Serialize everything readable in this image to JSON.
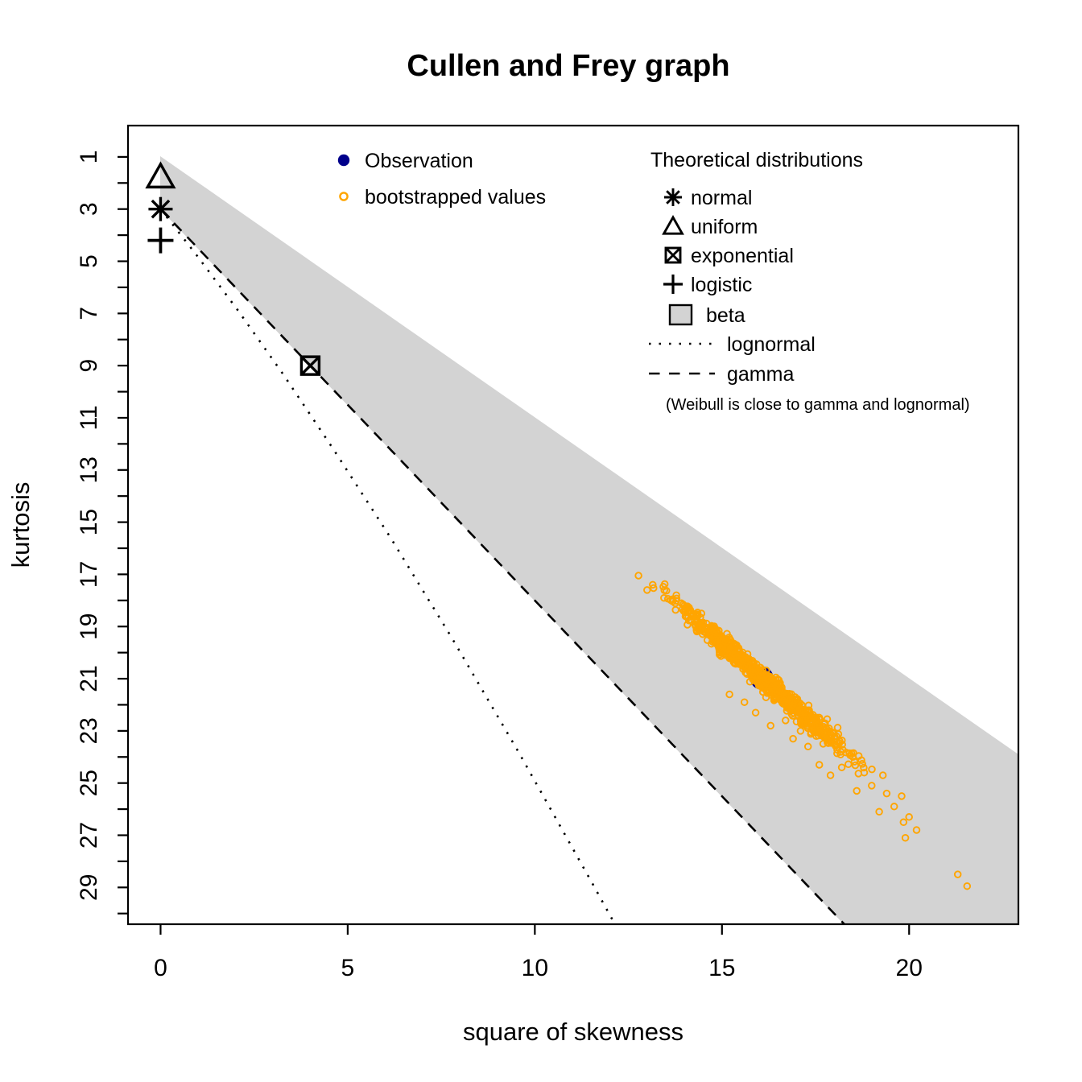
{
  "title": "Cullen and Frey graph",
  "legend": {
    "observation": "Observation",
    "bootstrapped": "bootstrapped values",
    "theoretical_title": "Theoretical distributions",
    "items": {
      "normal": "normal",
      "uniform": "uniform",
      "exponential": "exponential",
      "logistic": "logistic",
      "beta": "beta",
      "lognormal": "lognormal",
      "gamma": "gamma"
    },
    "weibull_note": "(Weibull is close to gamma and lognormal)"
  },
  "colors": {
    "observation": "#00008B",
    "bootstrap": "#FFA500",
    "beta_region": "#D3D3D3",
    "axis": "#000000"
  },
  "chart_data": {
    "type": "scatter",
    "title": "Cullen and Frey graph",
    "xlabel": "square of skewness",
    "ylabel": "kurtosis",
    "x_axis": {
      "ticks": [
        0,
        5,
        10,
        15,
        20
      ],
      "range": [
        -0.87,
        22.92
      ]
    },
    "y_axis": {
      "tick_min": 1,
      "tick_max": 30,
      "tick_every": 1,
      "labeled_ticks": [
        1,
        3,
        5,
        7,
        9,
        11,
        13,
        15,
        17,
        19,
        21,
        23,
        25,
        27,
        29
      ],
      "range": [
        -0.2,
        30.41
      ],
      "inverted": true
    },
    "beta_region_polygon": [
      [
        0,
        1
      ],
      [
        22.92,
        23.92
      ],
      [
        22.92,
        30.41
      ],
      [
        18.27,
        30.41
      ],
      [
        0,
        3
      ]
    ],
    "lognormal_curve": [
      [
        0,
        3
      ],
      [
        0.96,
        4.76
      ],
      [
        2.05,
        6.85
      ],
      [
        3.27,
        9.32
      ],
      [
        4.62,
        12.21
      ],
      [
        6.13,
        15.56
      ],
      [
        7.78,
        19.43
      ],
      [
        9.58,
        23.85
      ],
      [
        11.55,
        28.88
      ],
      [
        12.14,
        30.41
      ]
    ],
    "gamma_line": [
      [
        0,
        3
      ],
      [
        18.27,
        30.41
      ]
    ],
    "theoretical_points": {
      "normal": [
        0,
        3
      ],
      "uniform": [
        0,
        1.8
      ],
      "exponential": [
        4,
        9
      ],
      "logistic": [
        0,
        4.2
      ]
    },
    "observation": [
      16.06,
      20.97
    ],
    "bootstrap": {
      "count": 850,
      "seed": 1234567,
      "center": [
        16.05,
        20.95
      ],
      "axis": [
        0.62,
        0.785
      ],
      "sigma_along": 1.8,
      "sigma_perp": 0.13,
      "extra_points": [
        [
          17.6,
          24.3
        ],
        [
          17.9,
          24.7
        ],
        [
          18.2,
          24.4
        ],
        [
          18.5,
          24.0
        ],
        [
          18.6,
          25.3
        ],
        [
          18.8,
          24.6
        ],
        [
          19.0,
          25.1
        ],
        [
          19.2,
          26.1
        ],
        [
          19.3,
          24.7
        ],
        [
          19.4,
          25.4
        ],
        [
          19.6,
          25.9
        ],
        [
          19.8,
          25.5
        ],
        [
          19.85,
          26.5
        ],
        [
          20.0,
          26.3
        ],
        [
          20.2,
          26.8
        ],
        [
          19.9,
          27.1
        ],
        [
          15.2,
          21.6
        ],
        [
          15.6,
          21.9
        ],
        [
          15.9,
          22.3
        ],
        [
          16.3,
          22.8
        ],
        [
          16.7,
          22.6
        ],
        [
          16.9,
          23.3
        ],
        [
          17.1,
          23.0
        ],
        [
          17.3,
          23.6
        ],
        [
          13.0,
          17.6
        ],
        [
          13.15,
          17.4
        ],
        [
          12.77,
          17.05
        ],
        [
          21.3,
          28.5
        ],
        [
          21.55,
          28.95
        ]
      ]
    }
  }
}
